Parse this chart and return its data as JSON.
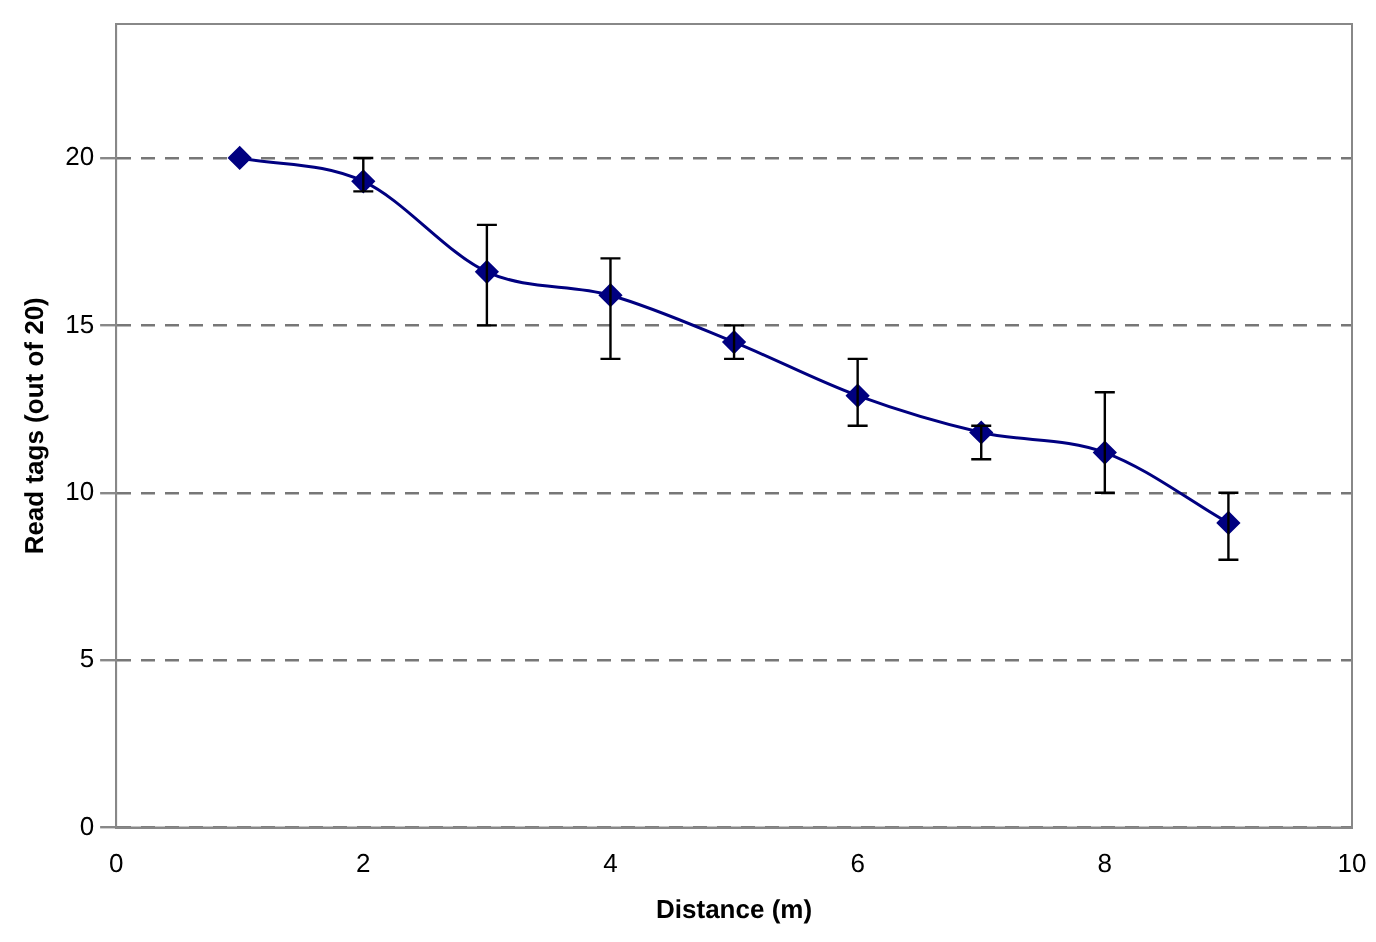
{
  "chart_data": {
    "type": "line",
    "xlabel": "Distance (m)",
    "ylabel": "Read tags (out of 20)",
    "x": [
      1,
      2,
      3,
      4,
      5,
      6,
      7,
      8,
      9
    ],
    "series": [
      {
        "color": "#000080",
        "values": [
          20,
          19.3,
          16.6,
          15.9,
          14.5,
          12.9,
          11.8,
          11.2,
          9.1
        ],
        "errors": [
          null,
          [
            19,
            20
          ],
          [
            15,
            18
          ],
          [
            14,
            17
          ],
          [
            14,
            15
          ],
          [
            12,
            14
          ],
          [
            11,
            12
          ],
          [
            10,
            13
          ],
          [
            8,
            10
          ]
        ]
      }
    ],
    "xlim": [
      0,
      10
    ],
    "xticks": [
      0,
      2,
      4,
      6,
      8,
      10
    ],
    "ylim": [
      0,
      24
    ],
    "yticks": [
      0,
      5,
      10,
      15,
      20
    ],
    "grid": "y",
    "legend": false,
    "marker": "diamond",
    "line_style": "solid"
  }
}
